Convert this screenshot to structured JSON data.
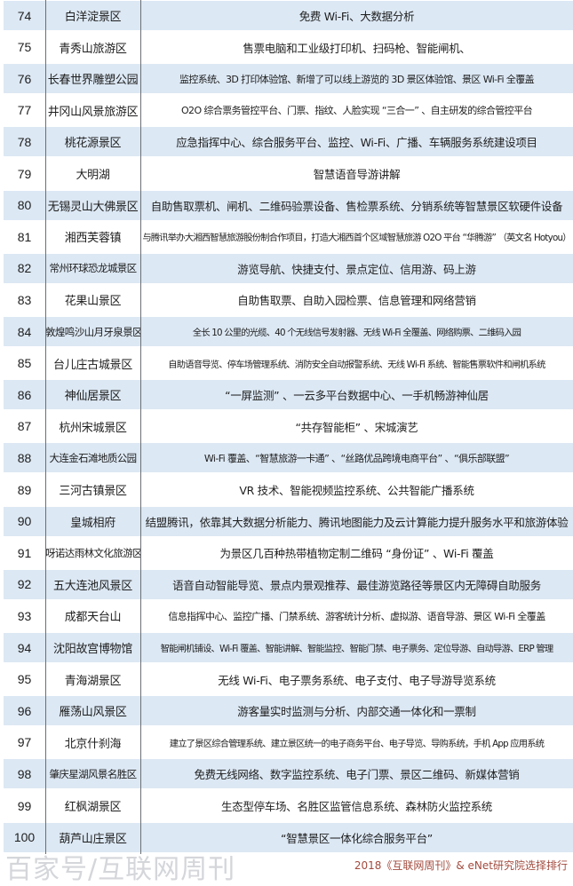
{
  "colors": {
    "row_alt": "#dce8f4",
    "row": "#ffffff",
    "caption": "#a24b3e"
  },
  "rows": [
    {
      "num": "74",
      "name": "白洋淀景区",
      "desc": "免费 Wi-Fi、大数据分析"
    },
    {
      "num": "75",
      "name": "青秀山旅游区",
      "desc": "售票电脑和工业级打印机、扫码枪、智能闸机、"
    },
    {
      "num": "76",
      "name": "长春世界雕塑公园",
      "desc": "监控系统、3D 打印体验馆、新增了可以线上游览的 3D 景区体验馆、景区 Wi-Fi 全覆盖"
    },
    {
      "num": "77",
      "name": "井冈山风景旅游区",
      "desc": "O2O 综合票务管控平台、门票、指纹、人脸实现 “三合一” 、自主研发的综合管控平台"
    },
    {
      "num": "78",
      "name": "桃花源景区",
      "desc": "应急指挥中心、综合服务平台、监控、Wi-Fi、广播、车辆服务系统建设项目"
    },
    {
      "num": "79",
      "name": "大明湖",
      "desc": "智慧语音导游讲解"
    },
    {
      "num": "80",
      "name": "无锡灵山大佛景区",
      "desc": "自助售取票机、闸机、二维码验票设备、售检票系统、分销系统等智慧景区软硬件设备"
    },
    {
      "num": "81",
      "name": "湘西芙蓉镇",
      "desc": "与腾讯举办大湘西智慧旅游股份制合作项目，打造大湘西首个区域智慧旅游 O2O 平台 “华腾游” （英文名 Hotyou）"
    },
    {
      "num": "82",
      "name": "常州环球恐龙城景区",
      "desc": "游览导航、快捷支付、景点定位、信用游、码上游"
    },
    {
      "num": "83",
      "name": "花果山景区",
      "desc": "自助售取票、自助入园检票、信息管理和网络营销"
    },
    {
      "num": "84",
      "name": "敦煌鸣沙山月牙泉景区",
      "desc": "全长 10 公里的光缆、40 个无线信号发射器、无线 Wi-Fi 全覆盖、网络购票、二维码入园"
    },
    {
      "num": "85",
      "name": "台儿庄古城景区",
      "desc": "自助语音导览、停车场管理系统、消防安全自动报警系统、无线 Wi-Fi 系统、智能售票软件和闸机系统"
    },
    {
      "num": "86",
      "name": "神仙居景区",
      "desc": "“一屏监测” 、一云多平台数据中心、一手机畅游神仙居"
    },
    {
      "num": "87",
      "name": "杭州宋城景区",
      "desc": "“共存智能柜” 、宋城演艺"
    },
    {
      "num": "88",
      "name": "大连金石滩地质公园",
      "desc": "Wi-Fi 覆盖、“智慧旅游一卡通” 、“丝路优品跨境电商平台” 、“俱乐部联盟”"
    },
    {
      "num": "89",
      "name": "三河古镇景区",
      "desc": "VR 技术、智能视频监控系统、公共智能广播系统"
    },
    {
      "num": "90",
      "name": "皇城相府",
      "desc": "结盟腾讯，依靠其大数据分析能力、腾讯地图能力及云计算能力提升服务水平和旅游体验"
    },
    {
      "num": "91",
      "name": "呀诺达雨林文化旅游区",
      "desc": "为景区几百种热带植物定制二维码 “身份证” 、Wi-Fi 覆盖"
    },
    {
      "num": "92",
      "name": "五大连池风景区",
      "desc": "语音自动智能导览、景点内景观推荐、最佳游览路径等景区内无障碍自助服务"
    },
    {
      "num": "93",
      "name": "成都天台山",
      "desc": "信息指挥中心、监控广播、门禁系统、游客统计分析、虚拟游、语音导游、景区 Wi-Fi 全覆盖"
    },
    {
      "num": "94",
      "name": "沈阳故宫博物馆",
      "desc": "智能闸机铺设、Wi-Fi 覆盖、智能讲解、智能监控、智能门禁、电子票务、定位导游、自动导游、ERP 管理"
    },
    {
      "num": "95",
      "name": "青海湖景区",
      "desc": "无线 Wi-Fi、电子票务系统、电子支付、电子导游导览系统"
    },
    {
      "num": "96",
      "name": "雁荡山风景区",
      "desc": "游客量实时监测与分析、内部交通一体化和一票制"
    },
    {
      "num": "97",
      "name": "北京什刹海",
      "desc": "建立了景区综合管理系统、建立景区统一的电子商务平台、电子导览、导购系统，手机 App 应用系统"
    },
    {
      "num": "98",
      "name": "肇庆星湖风景名胜区",
      "desc": "免费无线网络、数字监控系统、电子门票、景区二维码、新媒体营销"
    },
    {
      "num": "99",
      "name": "红枫湖景区",
      "desc": "生态型停车场、名胜区监管信息系统、森林防火监控系统"
    },
    {
      "num": "100",
      "name": "葫芦山庄景区",
      "desc": "“智慧景区一体化综合服务平台”"
    }
  ],
  "watermark": "百家号/互联网周刊",
  "caption": "2018《互联网周刊》& eNet研究院选择排行"
}
